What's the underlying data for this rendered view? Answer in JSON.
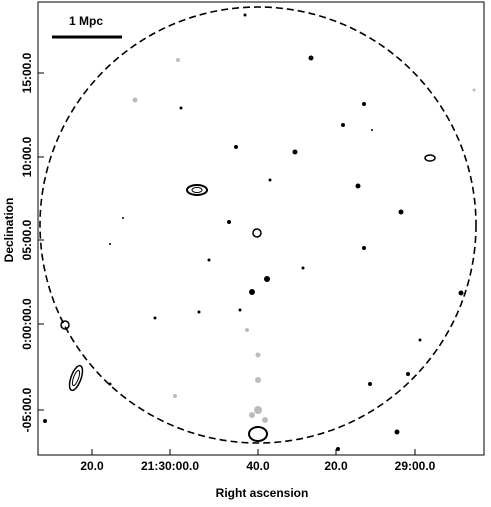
{
  "figure": {
    "scale_bar": "1 Mpc",
    "x_label": "Right ascension",
    "y_label": "Declination",
    "x_ticks": [
      "20.0",
      "21:30:00.0",
      "40.0",
      "20.0",
      "29:00.0"
    ],
    "y_ticks": [
      "15:00.0",
      "10:00.0",
      "05:00.0",
      "0:00:00.0",
      "-05:00.0"
    ]
  }
}
